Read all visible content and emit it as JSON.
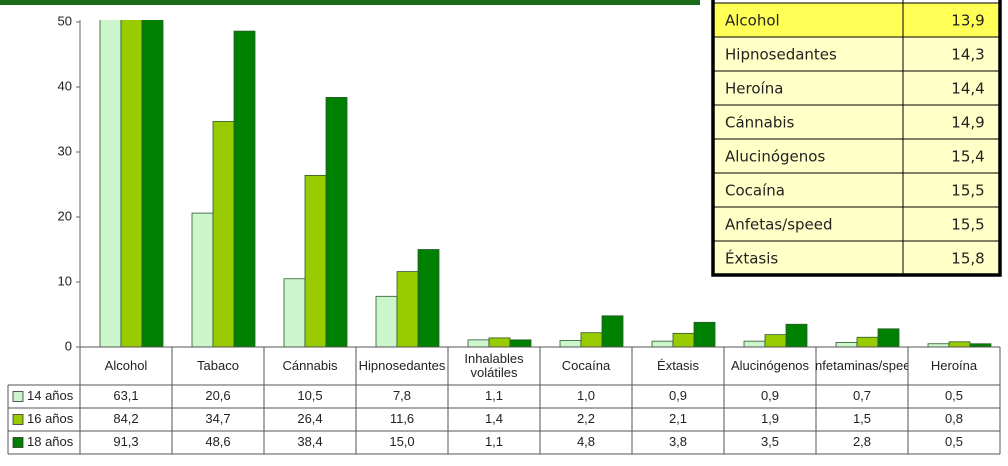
{
  "chart_data": {
    "type": "bar",
    "categories": [
      "Alcohol",
      "Tabaco",
      "Cánnabis",
      "Hipnosedantes",
      "Inhalables volátiles",
      "Cocaína",
      "Éxtasis",
      "Alucinógenos",
      "Anfetaminas/speed",
      "Heroína"
    ],
    "series": [
      {
        "name": "14 años",
        "color": "#ccf5cc",
        "values": [
          63.1,
          20.6,
          10.5,
          7.8,
          1.1,
          1.0,
          0.9,
          0.9,
          0.7,
          0.5
        ],
        "value_labels": [
          "63,1",
          "20,6",
          "10,5",
          "7,8",
          "1,1",
          "1,0",
          "0,9",
          "0,9",
          "0,7",
          "0,5"
        ]
      },
      {
        "name": "16 años",
        "color": "#99cc00",
        "values": [
          84.2,
          34.7,
          26.4,
          11.6,
          1.4,
          2.2,
          2.1,
          1.9,
          1.5,
          0.8
        ],
        "value_labels": [
          "84,2",
          "34,7",
          "26,4",
          "11,6",
          "1,4",
          "2,2",
          "2,1",
          "1,9",
          "1,5",
          "0,8"
        ]
      },
      {
        "name": "18 años",
        "color": "#008000",
        "values": [
          91.3,
          48.6,
          38.4,
          15.0,
          1.1,
          4.8,
          3.8,
          3.5,
          2.8,
          0.5
        ],
        "value_labels": [
          "91,3",
          "48,6",
          "38,4",
          "15,0",
          "1,1",
          "4,8",
          "3,8",
          "3,5",
          "2,8",
          "0,5"
        ]
      }
    ],
    "ylim": [
      0,
      50
    ],
    "yticks": [
      0,
      10,
      20,
      30,
      40,
      50
    ]
  },
  "onset_table": {
    "rows": [
      [
        "Alcohol",
        "13,9"
      ],
      [
        "Hipnosedantes",
        "14,3"
      ],
      [
        "Heroína",
        "14,4"
      ],
      [
        "Cánnabis",
        "14,9"
      ],
      [
        "Alucinógenos",
        "15,4"
      ],
      [
        "Cocaína",
        "15,5"
      ],
      [
        "Anfetas/speed",
        "15,5"
      ],
      [
        "Éxtasis",
        "15,8"
      ]
    ]
  }
}
